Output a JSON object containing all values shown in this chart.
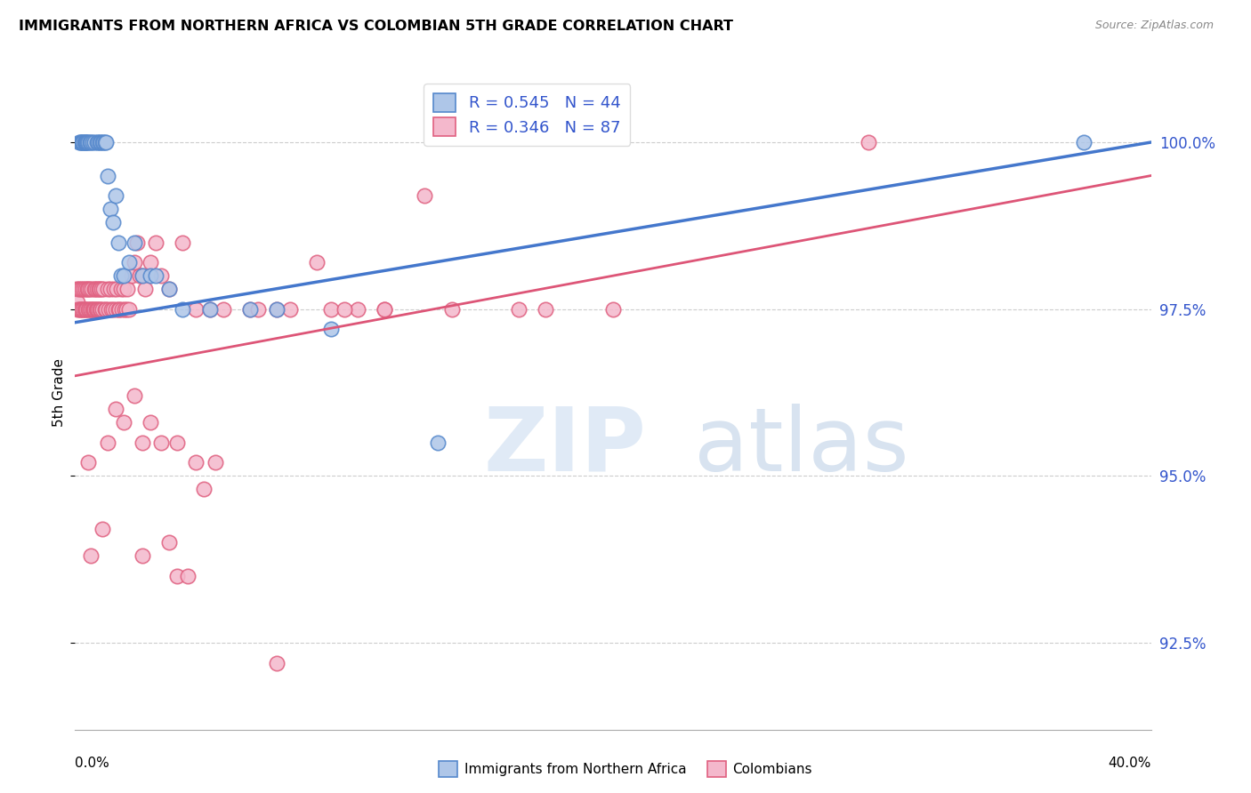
{
  "title": "IMMIGRANTS FROM NORTHERN AFRICA VS COLOMBIAN 5TH GRADE CORRELATION CHART",
  "source": "Source: ZipAtlas.com",
  "ylabel": "5th Grade",
  "ytick_values": [
    92.5,
    95.0,
    97.5,
    100.0
  ],
  "xrange": [
    0.0,
    40.0
  ],
  "yrange": [
    91.2,
    101.3
  ],
  "legend_r1": "R = 0.545   N = 44",
  "legend_r2": "R = 0.346   N = 87",
  "blue_face": "#aec6e8",
  "pink_face": "#f4b8cc",
  "blue_edge": "#5588cc",
  "pink_edge": "#e06080",
  "line_blue_color": "#4477cc",
  "line_pink_color": "#dd5577",
  "blue_scatter_x": [
    0.15,
    0.18,
    0.22,
    0.25,
    0.28,
    0.3,
    0.35,
    0.38,
    0.4,
    0.42,
    0.45,
    0.5,
    0.55,
    0.6,
    0.65,
    0.7,
    0.8,
    0.85,
    0.9,
    0.95,
    1.0,
    1.05,
    1.1,
    1.15,
    1.2,
    1.3,
    1.4,
    1.5,
    1.6,
    1.7,
    1.8,
    2.0,
    2.2,
    2.5,
    2.8,
    3.0,
    3.5,
    4.0,
    5.0,
    6.5,
    7.5,
    9.5,
    13.5,
    37.5
  ],
  "blue_scatter_y": [
    100.0,
    100.0,
    100.0,
    100.0,
    100.0,
    100.0,
    100.0,
    100.0,
    100.0,
    100.0,
    100.0,
    100.0,
    100.0,
    100.0,
    100.0,
    100.0,
    100.0,
    100.0,
    100.0,
    100.0,
    100.0,
    100.0,
    100.0,
    100.0,
    99.5,
    99.0,
    98.8,
    99.2,
    98.5,
    98.0,
    98.0,
    98.2,
    98.5,
    98.0,
    98.0,
    98.0,
    97.8,
    97.5,
    97.5,
    97.5,
    97.5,
    97.2,
    95.5,
    100.0
  ],
  "pink_scatter_x": [
    0.05,
    0.08,
    0.1,
    0.12,
    0.15,
    0.18,
    0.2,
    0.22,
    0.25,
    0.28,
    0.3,
    0.32,
    0.35,
    0.38,
    0.4,
    0.42,
    0.45,
    0.48,
    0.5,
    0.52,
    0.55,
    0.58,
    0.6,
    0.62,
    0.65,
    0.68,
    0.7,
    0.72,
    0.75,
    0.78,
    0.8,
    0.82,
    0.85,
    0.88,
    0.9,
    0.92,
    0.95,
    0.98,
    1.0,
    1.05,
    1.1,
    1.15,
    1.2,
    1.25,
    1.3,
    1.35,
    1.4,
    1.45,
    1.5,
    1.55,
    1.6,
    1.65,
    1.7,
    1.75,
    1.8,
    1.85,
    1.9,
    1.95,
    2.0,
    2.1,
    2.2,
    2.3,
    2.4,
    2.5,
    2.6,
    2.8,
    3.0,
    3.2,
    3.5,
    4.0,
    4.5,
    5.0,
    5.5,
    6.5,
    7.5,
    9.0,
    9.5,
    10.5,
    11.5,
    13.0,
    16.5,
    17.5,
    8.0,
    3.8,
    4.8,
    29.5
  ],
  "pink_scatter_y": [
    97.8,
    97.6,
    97.5,
    97.8,
    97.5,
    97.5,
    97.8,
    97.5,
    97.8,
    97.5,
    97.5,
    97.8,
    97.5,
    97.8,
    97.5,
    97.5,
    97.8,
    97.5,
    97.8,
    97.5,
    97.8,
    97.5,
    97.5,
    97.8,
    97.5,
    97.5,
    97.8,
    97.5,
    97.8,
    97.5,
    97.5,
    97.8,
    97.5,
    97.8,
    97.5,
    97.8,
    97.5,
    97.8,
    97.5,
    97.8,
    97.5,
    97.5,
    97.8,
    97.5,
    97.8,
    97.5,
    97.5,
    97.8,
    97.5,
    97.8,
    97.5,
    97.5,
    97.8,
    97.5,
    97.8,
    97.5,
    97.5,
    97.8,
    97.5,
    98.0,
    98.2,
    98.5,
    98.0,
    98.0,
    97.8,
    98.2,
    98.5,
    98.0,
    97.8,
    98.5,
    97.5,
    97.5,
    97.5,
    97.5,
    97.5,
    98.2,
    97.5,
    97.5,
    97.5,
    99.2,
    97.5,
    97.5,
    97.5,
    95.5,
    94.8,
    100.0
  ],
  "extra_pink_x": [
    0.5,
    1.2,
    1.5,
    1.8,
    2.2,
    2.5,
    2.8,
    3.2,
    4.5,
    5.2,
    6.8,
    10.0,
    11.5,
    14.0,
    20.0
  ],
  "extra_pink_y": [
    95.2,
    95.5,
    96.0,
    95.8,
    96.2,
    95.5,
    95.8,
    95.5,
    95.2,
    95.2,
    97.5,
    97.5,
    97.5,
    97.5,
    97.5
  ],
  "low_pink_x": [
    0.6,
    1.0,
    2.5,
    3.5,
    3.8,
    4.2,
    7.5
  ],
  "low_pink_y": [
    93.8,
    94.2,
    93.8,
    94.0,
    93.5,
    93.5,
    92.2
  ],
  "blue_line_x0": 0.0,
  "blue_line_y0": 97.3,
  "blue_line_x1": 40.0,
  "blue_line_y1": 100.0,
  "pink_line_x0": 0.0,
  "pink_line_y0": 96.5,
  "pink_line_x1": 40.0,
  "pink_line_y1": 99.5
}
